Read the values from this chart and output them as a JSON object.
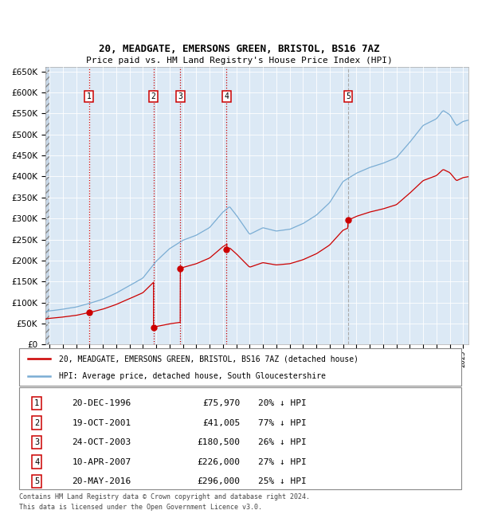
{
  "title1": "20, MEADGATE, EMERSONS GREEN, BRISTOL, BS16 7AZ",
  "title2": "Price paid vs. HM Land Registry's House Price Index (HPI)",
  "bg_color": "#dce9f5",
  "hpi_color": "#7aadd4",
  "price_color": "#cc0000",
  "transactions": [
    {
      "num": 1,
      "date_label": "20-DEC-1996",
      "date_x": 1996.97,
      "price": 75970,
      "pct": "20% ↓ HPI"
    },
    {
      "num": 2,
      "date_label": "19-OCT-2001",
      "date_x": 2001.8,
      "price": 41005,
      "pct": "77% ↓ HPI"
    },
    {
      "num": 3,
      "date_label": "24-OCT-2003",
      "date_x": 2003.81,
      "price": 180500,
      "pct": "26% ↓ HPI"
    },
    {
      "num": 4,
      "date_label": "10-APR-2007",
      "date_x": 2007.27,
      "price": 226000,
      "pct": "27% ↓ HPI"
    },
    {
      "num": 5,
      "date_label": "20-MAY-2016",
      "date_x": 2016.38,
      "price": 296000,
      "pct": "25% ↓ HPI"
    }
  ],
  "legend_line1": "20, MEADGATE, EMERSONS GREEN, BRISTOL, BS16 7AZ (detached house)",
  "legend_line2": "HPI: Average price, detached house, South Gloucestershire",
  "footer1": "Contains HM Land Registry data © Crown copyright and database right 2024.",
  "footer2": "This data is licensed under the Open Government Licence v3.0.",
  "ylim": [
    0,
    660000
  ],
  "xlim_start": 1993.7,
  "xlim_end": 2025.4,
  "hpi_anchors": [
    [
      1993.7,
      78000
    ],
    [
      1994.0,
      80000
    ],
    [
      1995.0,
      84000
    ],
    [
      1996.0,
      89000
    ],
    [
      1997.0,
      98000
    ],
    [
      1998.0,
      108000
    ],
    [
      1999.0,
      122000
    ],
    [
      2000.0,
      140000
    ],
    [
      2001.0,
      158000
    ],
    [
      2002.0,
      198000
    ],
    [
      2003.0,
      228000
    ],
    [
      2004.0,
      248000
    ],
    [
      2005.0,
      260000
    ],
    [
      2006.0,
      278000
    ],
    [
      2007.0,
      315000
    ],
    [
      2007.5,
      328000
    ],
    [
      2008.0,
      308000
    ],
    [
      2009.0,
      262000
    ],
    [
      2010.0,
      278000
    ],
    [
      2011.0,
      270000
    ],
    [
      2012.0,
      274000
    ],
    [
      2013.0,
      288000
    ],
    [
      2014.0,
      308000
    ],
    [
      2015.0,
      338000
    ],
    [
      2016.0,
      388000
    ],
    [
      2017.0,
      408000
    ],
    [
      2018.0,
      422000
    ],
    [
      2019.0,
      432000
    ],
    [
      2020.0,
      445000
    ],
    [
      2021.0,
      482000
    ],
    [
      2022.0,
      522000
    ],
    [
      2023.0,
      538000
    ],
    [
      2023.5,
      558000
    ],
    [
      2024.0,
      548000
    ],
    [
      2024.5,
      522000
    ],
    [
      2025.0,
      532000
    ],
    [
      2025.4,
      535000
    ]
  ]
}
